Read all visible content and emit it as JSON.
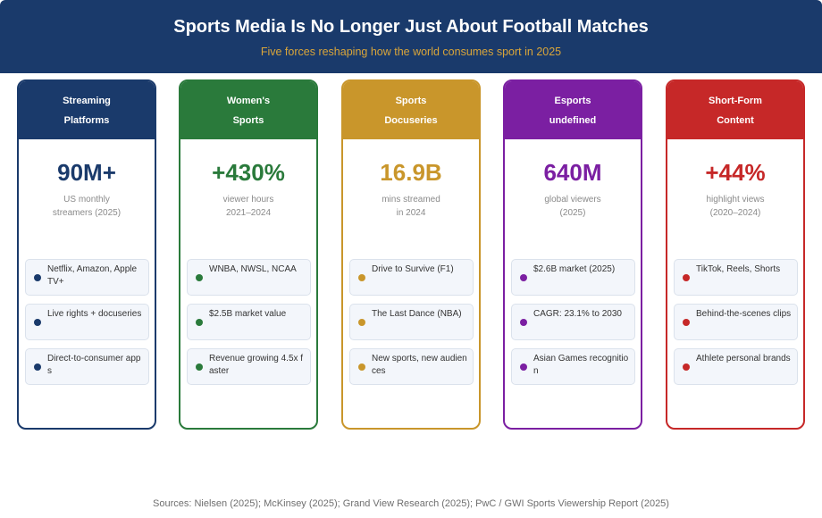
{
  "header": {
    "title": "Sports Media Is No Longer Just About Football Matches",
    "subtitle": "Five forces reshaping how the world consumes sport in 2025"
  },
  "cards": [
    {
      "title_line1": "Streaming",
      "title_line2": "Platforms",
      "stat": "90M+",
      "desc_line1": "US monthly",
      "desc_line2": "streamers (2025)",
      "color": "#1a3a6b",
      "items": [
        "Netflix, Amazon, Apple TV+",
        "Live rights + docuseries",
        "Direct-to-consumer apps"
      ]
    },
    {
      "title_line1": "Women's",
      "title_line2": "Sports",
      "stat": "+430%",
      "desc_line1": "viewer hours",
      "desc_line2": "2021–2024",
      "color": "#2a7a3b",
      "items": [
        "WNBA, NWSL, NCAA",
        "$2.5B market value",
        "Revenue growing 4.5x faster"
      ]
    },
    {
      "title_line1": "Sports",
      "title_line2": "Docuseries",
      "stat": "16.9B",
      "desc_line1": "mins streamed",
      "desc_line2": "in 2024",
      "color": "#c9962b",
      "items": [
        "Drive to Survive (F1)",
        "The Last Dance (NBA)",
        "New sports, new audiences"
      ]
    },
    {
      "title_line1": "Esports",
      "title_line2": "undefined",
      "stat": "640M",
      "desc_line1": "global viewers",
      "desc_line2": "(2025)",
      "color": "#7b1fa2",
      "items": [
        "$2.6B market (2025)",
        "CAGR: 23.1% to 2030",
        "Asian Games recognition"
      ]
    },
    {
      "title_line1": "Short-Form",
      "title_line2": "Content",
      "stat": "+44%",
      "desc_line1": "highlight views",
      "desc_line2": "(2020–2024)",
      "color": "#c62828",
      "items": [
        "TikTok, Reels, Shorts",
        "Behind-the-scenes clips",
        "Athlete personal brands"
      ]
    }
  ],
  "footer": {
    "sources": "Sources: Nielsen (2025); McKinsey (2025); Grand View Research (2025); PwC / GWI Sports Viewership Report (2025)"
  }
}
